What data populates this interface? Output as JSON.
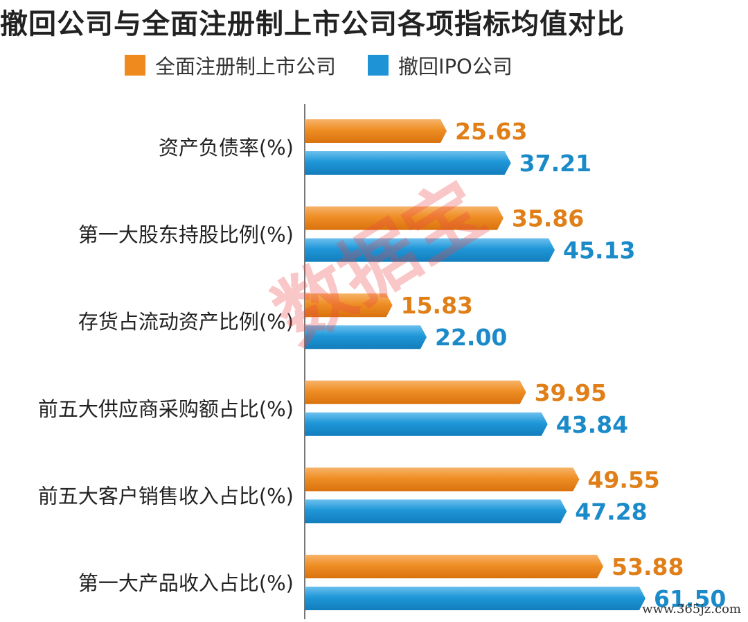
{
  "chart_data": {
    "type": "bar",
    "orientation": "horizontal",
    "title": "撤回公司与全面注册制上市公司各项指标均值对比",
    "categories": [
      "资产负债率(%)",
      "第一大股东持股比例(%)",
      "存货占流动资产比例(%)",
      "前五大供应商采购额占比(%)",
      "前五大客户销售收入占比(%)",
      "第一大产品收入占比(%)"
    ],
    "series": [
      {
        "name": "全面注册制上市公司",
        "color": "#EE8A1E",
        "label_color": "#E07F18",
        "values": [
          25.63,
          35.86,
          15.83,
          39.95,
          49.55,
          53.88
        ]
      },
      {
        "name": "撤回IPO公司",
        "color": "#1E94D6",
        "label_color": "#1B8AC8",
        "values": [
          37.21,
          45.13,
          22.0,
          43.84,
          47.28,
          61.5
        ]
      }
    ],
    "xlim": [
      0,
      65
    ],
    "legend_position": "top",
    "data_labels": true,
    "grid": false
  },
  "watermark": "数据宝",
  "site_mark": "www.365jz.com"
}
